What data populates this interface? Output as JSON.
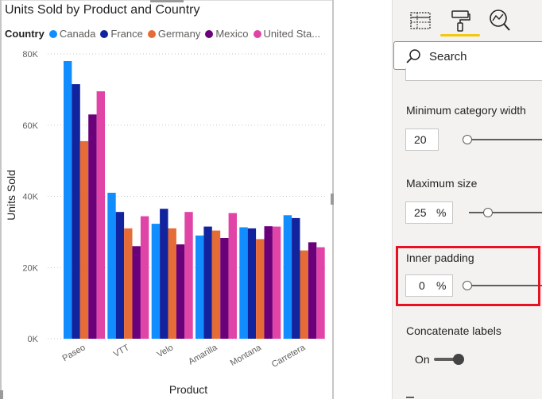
{
  "chart": {
    "title": "Units Sold by Product and Country",
    "legend_title": "Country",
    "legend": [
      {
        "label": "Canada",
        "color": "#118dff"
      },
      {
        "label": "France",
        "color": "#12239e"
      },
      {
        "label": "Germany",
        "color": "#e66c37"
      },
      {
        "label": "Mexico",
        "color": "#6b007b"
      },
      {
        "label": "United Sta...",
        "color": "#e044a7"
      }
    ],
    "y_ticks": [
      "0K",
      "20K",
      "40K",
      "60K",
      "80K"
    ],
    "ylabel": "Units Sold",
    "xlabel": "Product"
  },
  "chart_data": {
    "type": "bar",
    "title": "Units Sold by Product and Country",
    "xlabel": "Product",
    "ylabel": "Units Sold",
    "ylim": [
      0,
      80000
    ],
    "grid": true,
    "legend_position": "top",
    "categories": [
      "Paseo",
      "VTT",
      "Velo",
      "Amarilla",
      "Montana",
      "Carretera"
    ],
    "series": [
      {
        "name": "Canada",
        "color": "#118dff",
        "values": [
          78000,
          41000,
          32300,
          29000,
          31300,
          34700
        ]
      },
      {
        "name": "France",
        "color": "#12239e",
        "values": [
          71500,
          35600,
          36500,
          31500,
          31000,
          33900
        ]
      },
      {
        "name": "Germany",
        "color": "#e66c37",
        "values": [
          55500,
          31000,
          31000,
          30400,
          28000,
          24800
        ]
      },
      {
        "name": "Mexico",
        "color": "#6b007b",
        "values": [
          63000,
          26000,
          26500,
          28300,
          31600,
          27100
        ]
      },
      {
        "name": "United Sta...",
        "color": "#e044a7",
        "values": [
          69500,
          34400,
          35600,
          35300,
          31500,
          25700
        ]
      }
    ]
  },
  "pane": {
    "tabs": [
      {
        "name": "fields-tab",
        "icon": "table-grid-icon"
      },
      {
        "name": "format-tab",
        "icon": "paint-roller-icon"
      },
      {
        "name": "analytics-tab",
        "icon": "magnifier-chart-icon"
      }
    ],
    "search_placeholder": "Search",
    "min_category_width": {
      "label": "Minimum category width",
      "value": "20"
    },
    "max_size": {
      "label": "Maximum size",
      "value": "25",
      "unit": "%"
    },
    "inner_padding": {
      "label": "Inner padding",
      "value": "0",
      "unit": "%"
    },
    "concatenate_labels": {
      "label": "Concatenate labels",
      "state": "On"
    },
    "highlight_color": "#e81123",
    "accent_color": "#f2c811"
  }
}
